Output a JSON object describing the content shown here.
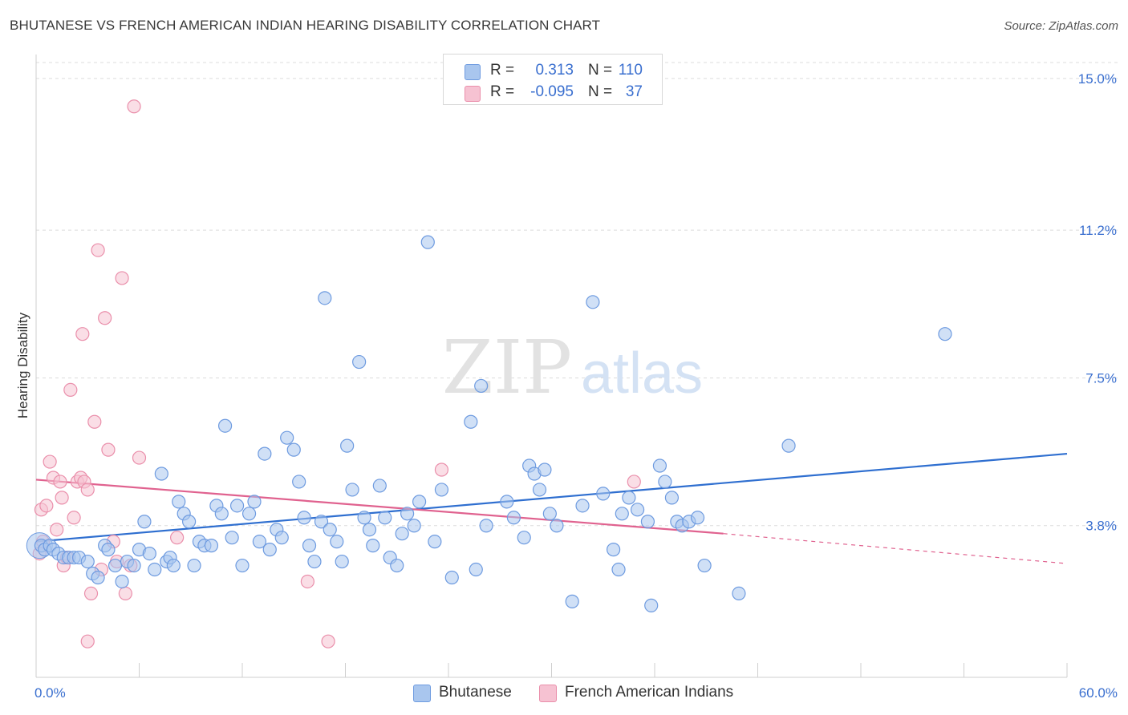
{
  "title": "BHUTANESE VS FRENCH AMERICAN INDIAN HEARING DISABILITY CORRELATION CHART",
  "source": "Source: ZipAtlas.com",
  "watermark": {
    "zip": "ZIP",
    "atlas": "atlas"
  },
  "legend": {
    "rows": [
      {
        "r_label": "R =",
        "r_value": "0.313",
        "n_label": "N =",
        "n_value": "110"
      },
      {
        "r_label": "R =",
        "r_value": "-0.095",
        "n_label": "N =",
        "n_value": "37"
      }
    ]
  },
  "bottom_legend": [
    "Bhutanese",
    "French American Indians"
  ],
  "colors": {
    "blue_fill": "#a9c6ee",
    "blue_stroke": "#6e9be0",
    "blue_line": "#2f6fd0",
    "pink_fill": "#f6c2d2",
    "pink_stroke": "#ea8fab",
    "pink_line": "#e0628f",
    "axis_label": "#3a6fcf",
    "grid": "#dcdcdc"
  },
  "chart_data": {
    "type": "scatter",
    "title": "BHUTANESE VS FRENCH AMERICAN INDIAN HEARING DISABILITY CORRELATION CHART",
    "xlabel": "",
    "ylabel": "Hearing Disability",
    "xlim": [
      0,
      60
    ],
    "ylim": [
      0,
      15.4
    ],
    "x_tick_labels": [
      "0.0%",
      "60.0%"
    ],
    "y_ticks": [
      3.8,
      7.5,
      11.2,
      15.0
    ],
    "y_tick_labels": [
      "3.8%",
      "7.5%",
      "11.2%",
      "15.0%"
    ],
    "grid": true,
    "series": [
      {
        "name": "Bhutanese",
        "color": "#a9c6ee",
        "trend": {
          "x": [
            0,
            60
          ],
          "y": [
            3.4,
            5.6
          ]
        },
        "points": [
          [
            0.3,
            3.3
          ],
          [
            0.5,
            3.2
          ],
          [
            0.8,
            3.3
          ],
          [
            1.0,
            3.2
          ],
          [
            1.3,
            3.1
          ],
          [
            1.6,
            3.0
          ],
          [
            1.9,
            3.0
          ],
          [
            2.2,
            3.0
          ],
          [
            2.5,
            3.0
          ],
          [
            3.0,
            2.9
          ],
          [
            3.3,
            2.6
          ],
          [
            3.6,
            2.5
          ],
          [
            4.0,
            3.3
          ],
          [
            4.2,
            3.2
          ],
          [
            4.6,
            2.8
          ],
          [
            5.0,
            2.4
          ],
          [
            5.3,
            2.9
          ],
          [
            5.7,
            2.8
          ],
          [
            6.0,
            3.2
          ],
          [
            6.3,
            3.9
          ],
          [
            6.6,
            3.1
          ],
          [
            6.9,
            2.7
          ],
          [
            7.3,
            5.1
          ],
          [
            7.6,
            2.9
          ],
          [
            7.8,
            3.0
          ],
          [
            8.0,
            2.8
          ],
          [
            8.3,
            4.4
          ],
          [
            8.6,
            4.1
          ],
          [
            8.9,
            3.9
          ],
          [
            9.2,
            2.8
          ],
          [
            9.5,
            3.4
          ],
          [
            9.8,
            3.3
          ],
          [
            10.2,
            3.3
          ],
          [
            10.5,
            4.3
          ],
          [
            10.8,
            4.1
          ],
          [
            11.0,
            6.3
          ],
          [
            11.4,
            3.5
          ],
          [
            11.7,
            4.3
          ],
          [
            12.0,
            2.8
          ],
          [
            12.4,
            4.1
          ],
          [
            12.7,
            4.4
          ],
          [
            13.0,
            3.4
          ],
          [
            13.3,
            5.6
          ],
          [
            13.6,
            3.2
          ],
          [
            14.0,
            3.7
          ],
          [
            14.3,
            3.5
          ],
          [
            14.6,
            6.0
          ],
          [
            15.0,
            5.7
          ],
          [
            15.3,
            4.9
          ],
          [
            15.6,
            4.0
          ],
          [
            15.9,
            3.3
          ],
          [
            16.2,
            2.9
          ],
          [
            16.6,
            3.9
          ],
          [
            16.8,
            9.5
          ],
          [
            17.1,
            3.7
          ],
          [
            17.5,
            3.4
          ],
          [
            17.8,
            2.9
          ],
          [
            18.1,
            5.8
          ],
          [
            18.4,
            4.7
          ],
          [
            18.8,
            7.9
          ],
          [
            19.1,
            4.0
          ],
          [
            19.4,
            3.7
          ],
          [
            19.6,
            3.3
          ],
          [
            20.0,
            4.8
          ],
          [
            20.3,
            4.0
          ],
          [
            20.6,
            3.0
          ],
          [
            21.0,
            2.8
          ],
          [
            21.3,
            3.6
          ],
          [
            21.6,
            4.1
          ],
          [
            22.0,
            3.8
          ],
          [
            22.3,
            4.4
          ],
          [
            22.8,
            10.9
          ],
          [
            23.2,
            3.4
          ],
          [
            23.6,
            4.7
          ],
          [
            24.2,
            2.5
          ],
          [
            25.3,
            6.4
          ],
          [
            25.6,
            2.7
          ],
          [
            25.9,
            7.3
          ],
          [
            26.2,
            3.8
          ],
          [
            27.4,
            4.4
          ],
          [
            27.8,
            4.0
          ],
          [
            28.4,
            3.5
          ],
          [
            28.7,
            5.3
          ],
          [
            29.0,
            5.1
          ],
          [
            29.3,
            4.7
          ],
          [
            29.6,
            5.2
          ],
          [
            29.9,
            4.1
          ],
          [
            30.3,
            3.8
          ],
          [
            31.2,
            1.9
          ],
          [
            31.8,
            4.3
          ],
          [
            32.4,
            9.4
          ],
          [
            33.0,
            4.6
          ],
          [
            33.6,
            3.2
          ],
          [
            33.9,
            2.7
          ],
          [
            34.1,
            4.1
          ],
          [
            34.5,
            4.5
          ],
          [
            35.0,
            4.2
          ],
          [
            35.6,
            3.9
          ],
          [
            35.8,
            1.8
          ],
          [
            36.3,
            5.3
          ],
          [
            36.6,
            4.9
          ],
          [
            37.0,
            4.5
          ],
          [
            37.3,
            3.9
          ],
          [
            37.6,
            3.8
          ],
          [
            38.0,
            3.9
          ],
          [
            38.5,
            4.0
          ],
          [
            38.9,
            2.8
          ],
          [
            40.9,
            2.1
          ],
          [
            43.8,
            5.8
          ],
          [
            52.9,
            8.6
          ]
        ]
      },
      {
        "name": "French American Indians",
        "color": "#f6c2d2",
        "trend": {
          "x": [
            0,
            40
          ],
          "y": [
            4.95,
            3.6
          ]
        },
        "trend_dashed": {
          "x": [
            40,
            60
          ],
          "y": [
            3.6,
            2.85
          ]
        },
        "points": [
          [
            0.2,
            3.1
          ],
          [
            0.3,
            4.2
          ],
          [
            0.4,
            3.4
          ],
          [
            0.6,
            4.3
          ],
          [
            0.8,
            5.4
          ],
          [
            1.0,
            5.0
          ],
          [
            1.2,
            3.7
          ],
          [
            1.4,
            4.9
          ],
          [
            1.5,
            4.5
          ],
          [
            1.6,
            2.8
          ],
          [
            1.8,
            3.0
          ],
          [
            2.0,
            7.2
          ],
          [
            2.2,
            4.0
          ],
          [
            2.4,
            4.9
          ],
          [
            2.6,
            5.0
          ],
          [
            2.7,
            8.6
          ],
          [
            2.8,
            4.9
          ],
          [
            3.0,
            4.7
          ],
          [
            3.0,
            0.9
          ],
          [
            3.2,
            2.1
          ],
          [
            3.4,
            6.4
          ],
          [
            3.6,
            10.7
          ],
          [
            3.8,
            2.7
          ],
          [
            4.0,
            9.0
          ],
          [
            4.2,
            5.7
          ],
          [
            4.5,
            3.4
          ],
          [
            4.7,
            2.9
          ],
          [
            5.0,
            10.0
          ],
          [
            5.2,
            2.1
          ],
          [
            5.5,
            2.8
          ],
          [
            5.7,
            14.3
          ],
          [
            6.0,
            5.5
          ],
          [
            8.2,
            3.5
          ],
          [
            15.8,
            2.4
          ],
          [
            17.0,
            0.9
          ],
          [
            23.6,
            5.2
          ],
          [
            34.8,
            4.9
          ]
        ]
      }
    ]
  }
}
